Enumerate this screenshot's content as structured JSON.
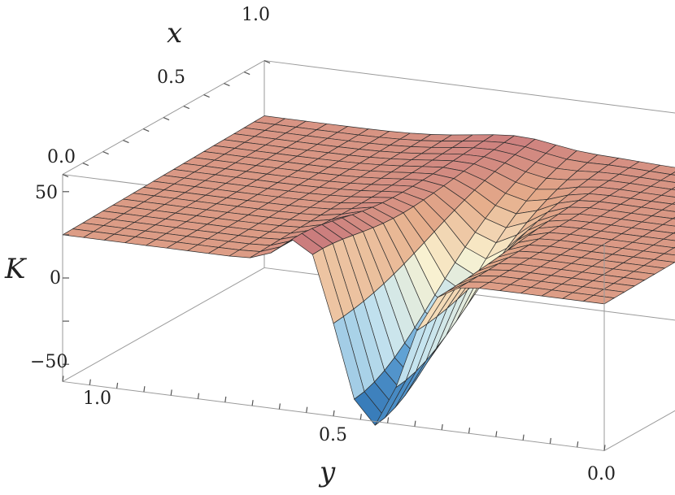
{
  "chart_data": {
    "type": "surface3d",
    "xlabel": "x",
    "ylabel": "y",
    "zlabel": "K",
    "xlim": [
      0.0,
      1.0
    ],
    "ylim": [
      0.0,
      1.0
    ],
    "zlim": [
      -60,
      60
    ],
    "x_ticks": [
      "0.0",
      "0.5",
      "1.0"
    ],
    "y_ticks": [
      "1.0",
      "0.5",
      "0.0"
    ],
    "z_ticks": [
      "50",
      "0",
      "−50"
    ],
    "mesh": {
      "nx": 21,
      "ny": 27
    },
    "samples": [
      {
        "x": 0.0,
        "y": 1.0,
        "K": 25
      },
      {
        "x": 0.0,
        "y": 0.55,
        "K": 45
      },
      {
        "x": 0.0,
        "y": 0.5,
        "K": 10
      },
      {
        "x": 0.0,
        "y": 0.45,
        "K": -60
      },
      {
        "x": 0.0,
        "y": 0.0,
        "K": 25
      },
      {
        "x": 1.0,
        "y": 1.0,
        "K": 25
      },
      {
        "x": 1.0,
        "y": 0.5,
        "K": 28
      },
      {
        "x": 1.0,
        "y": 0.0,
        "K": 25
      }
    ],
    "colormap": [
      "#2a6fb0",
      "#63a4d6",
      "#c6e4ef",
      "#fbf2cf",
      "#e5ac8a",
      "#c4707a",
      "#a43d4d"
    ],
    "grid": false
  }
}
